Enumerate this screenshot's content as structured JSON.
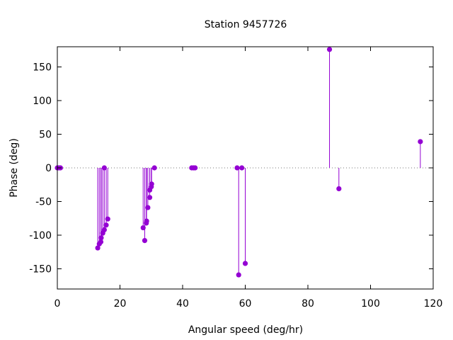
{
  "chart_data": {
    "type": "scatter",
    "style": "impulses",
    "title": "Station 9457726",
    "xlabel": "Angular speed (deg/hr)",
    "ylabel": "Phase (deg)",
    "xlim": [
      0,
      120
    ],
    "ylim": [
      -180,
      180
    ],
    "xticks": [
      0,
      20,
      40,
      60,
      80,
      100,
      120
    ],
    "yticks": [
      -150,
      -100,
      -50,
      0,
      50,
      100,
      150
    ],
    "zero_line": "dotted",
    "grid": false,
    "color": "#9400d3",
    "series": [
      {
        "points": [
          {
            "x": 0.0,
            "y": 0
          },
          {
            "x": 0.5,
            "y": 0
          },
          {
            "x": 1.0,
            "y": 0
          },
          {
            "x": 12.9,
            "y": -119
          },
          {
            "x": 13.4,
            "y": -113
          },
          {
            "x": 13.9,
            "y": -110
          },
          {
            "x": 14.0,
            "y": -104
          },
          {
            "x": 14.5,
            "y": -97
          },
          {
            "x": 15.0,
            "y": 0
          },
          {
            "x": 15.0,
            "y": -92
          },
          {
            "x": 15.6,
            "y": -85
          },
          {
            "x": 16.1,
            "y": -76
          },
          {
            "x": 27.4,
            "y": -89
          },
          {
            "x": 27.9,
            "y": -108
          },
          {
            "x": 28.4,
            "y": -82
          },
          {
            "x": 28.5,
            "y": -79
          },
          {
            "x": 28.9,
            "y": -59
          },
          {
            "x": 29.5,
            "y": -33
          },
          {
            "x": 29.5,
            "y": -44
          },
          {
            "x": 30.0,
            "y": -28
          },
          {
            "x": 30.1,
            "y": -24
          },
          {
            "x": 31.0,
            "y": 0
          },
          {
            "x": 42.9,
            "y": 0
          },
          {
            "x": 43.5,
            "y": 0
          },
          {
            "x": 44.0,
            "y": 0
          },
          {
            "x": 57.4,
            "y": 0
          },
          {
            "x": 57.9,
            "y": -159
          },
          {
            "x": 58.9,
            "y": 0
          },
          {
            "x": 60.0,
            "y": -142
          },
          {
            "x": 86.9,
            "y": 176
          },
          {
            "x": 89.9,
            "y": -31
          },
          {
            "x": 115.9,
            "y": 39
          }
        ]
      }
    ]
  }
}
